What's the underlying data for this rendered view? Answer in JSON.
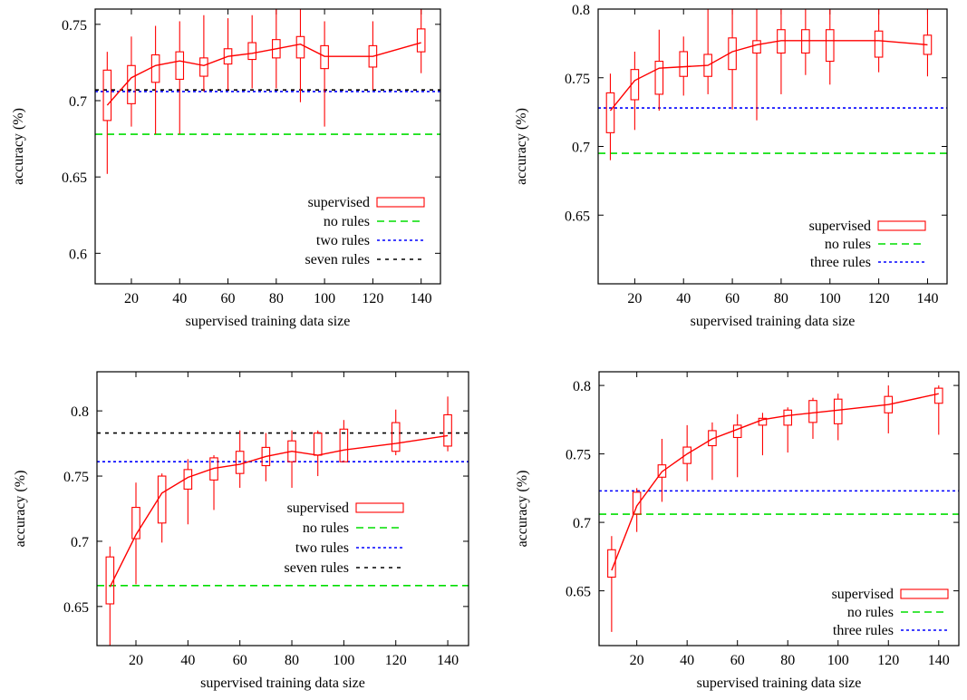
{
  "chart_data": [
    {
      "type": "box",
      "xlabel": "supervised training data size",
      "ylabel": "accuracy (%)",
      "xlim": [
        5,
        148
      ],
      "ylim": [
        0.58,
        0.76
      ],
      "xticks": [
        20,
        40,
        60,
        80,
        100,
        120,
        140
      ],
      "yticks": [
        0.6,
        0.65,
        0.7,
        0.75
      ],
      "ytick_labels": [
        "0.6",
        "0.65",
        "0.7",
        "0.75"
      ],
      "legend_position": "bottom-right",
      "box_series": {
        "name": "supervised",
        "color": "#ff0000",
        "x": [
          10,
          20,
          30,
          40,
          50,
          60,
          70,
          80,
          90,
          100,
          120,
          140
        ],
        "median": [
          0.697,
          0.715,
          0.723,
          0.726,
          0.723,
          0.729,
          0.731,
          0.734,
          0.737,
          0.729,
          0.729,
          0.738
        ],
        "q1": [
          0.687,
          0.698,
          0.712,
          0.714,
          0.716,
          0.724,
          0.727,
          0.728,
          0.728,
          0.721,
          0.722,
          0.732
        ],
        "q3": [
          0.72,
          0.723,
          0.73,
          0.732,
          0.728,
          0.734,
          0.738,
          0.74,
          0.742,
          0.736,
          0.736,
          0.747
        ],
        "min": [
          0.652,
          0.683,
          0.678,
          0.678,
          0.706,
          0.707,
          0.708,
          0.708,
          0.699,
          0.683,
          0.707,
          0.718
        ],
        "max": [
          0.732,
          0.742,
          0.749,
          0.752,
          0.756,
          0.754,
          0.756,
          0.76,
          0.76,
          0.752,
          0.752,
          0.76
        ],
        "line": [
          0.697,
          0.715,
          0.723,
          0.726,
          0.723,
          0.729,
          0.731,
          0.734,
          0.737,
          0.729,
          0.729,
          0.738
        ]
      },
      "hlines": [
        {
          "name": "no rules",
          "value": 0.678,
          "color": "#00dd00",
          "dash": "8,5"
        },
        {
          "name": "two rules",
          "value": 0.706,
          "color": "#0000ff",
          "dash": "3,3"
        },
        {
          "name": "seven rules",
          "value": 0.707,
          "color": "#000000",
          "dash": "4,5"
        }
      ]
    },
    {
      "type": "box",
      "xlabel": "supervised training data size",
      "ylabel": "accuracy (%)",
      "xlim": [
        5,
        148
      ],
      "ylim": [
        0.6,
        0.8
      ],
      "xticks": [
        20,
        40,
        60,
        80,
        100,
        120,
        140
      ],
      "yticks": [
        0.65,
        0.7,
        0.75,
        0.8
      ],
      "ytick_labels": [
        "0.65",
        "0.7",
        "0.75",
        "0.8"
      ],
      "legend_position": "bottom-right",
      "box_series": {
        "name": "supervised",
        "color": "#ff0000",
        "x": [
          10,
          20,
          30,
          40,
          50,
          60,
          70,
          80,
          90,
          100,
          120,
          140
        ],
        "median": [
          0.726,
          0.748,
          0.757,
          0.758,
          0.759,
          0.769,
          0.774,
          0.777,
          0.777,
          0.777,
          0.777,
          0.774
        ],
        "q1": [
          0.71,
          0.734,
          0.738,
          0.751,
          0.751,
          0.756,
          0.768,
          0.768,
          0.768,
          0.762,
          0.765,
          0.767
        ],
        "q3": [
          0.739,
          0.756,
          0.762,
          0.769,
          0.767,
          0.779,
          0.777,
          0.785,
          0.785,
          0.785,
          0.784,
          0.781
        ],
        "min": [
          0.69,
          0.712,
          0.726,
          0.737,
          0.738,
          0.727,
          0.719,
          0.738,
          0.752,
          0.745,
          0.754,
          0.751
        ],
        "max": [
          0.753,
          0.769,
          0.785,
          0.78,
          0.8,
          0.8,
          0.8,
          0.8,
          0.8,
          0.8,
          0.8,
          0.8
        ],
        "line": [
          0.726,
          0.748,
          0.757,
          0.758,
          0.759,
          0.769,
          0.774,
          0.777,
          0.777,
          0.777,
          0.777,
          0.774
        ]
      },
      "hlines": [
        {
          "name": "no rules",
          "value": 0.695,
          "color": "#00dd00",
          "dash": "8,5"
        },
        {
          "name": "three rules",
          "value": 0.728,
          "color": "#0000ff",
          "dash": "3,3"
        }
      ]
    },
    {
      "type": "box",
      "xlabel": "supervised training data size",
      "ylabel": "accuracy (%)",
      "xlim": [
        5,
        148
      ],
      "ylim": [
        0.62,
        0.83
      ],
      "xticks": [
        20,
        40,
        60,
        80,
        100,
        120,
        140
      ],
      "yticks": [
        0.65,
        0.7,
        0.75,
        0.8
      ],
      "ytick_labels": [
        "0.65",
        "0.7",
        "0.75",
        "0.8"
      ],
      "legend_position": "center-right",
      "box_series": {
        "name": "supervised",
        "color": "#ff0000",
        "x": [
          10,
          20,
          30,
          40,
          50,
          60,
          70,
          80,
          90,
          100,
          120,
          140
        ],
        "median": [
          0.665,
          0.705,
          0.737,
          0.749,
          0.756,
          0.759,
          0.765,
          0.769,
          0.766,
          0.77,
          0.775,
          0.781
        ],
        "q1": [
          0.652,
          0.702,
          0.714,
          0.74,
          0.747,
          0.752,
          0.758,
          0.761,
          0.766,
          0.761,
          0.769,
          0.773
        ],
        "q3": [
          0.688,
          0.726,
          0.75,
          0.755,
          0.764,
          0.769,
          0.772,
          0.777,
          0.783,
          0.786,
          0.791,
          0.797
        ],
        "min": [
          0.62,
          0.667,
          0.699,
          0.713,
          0.724,
          0.741,
          0.746,
          0.741,
          0.75,
          0.762,
          0.766,
          0.769
        ],
        "max": [
          0.696,
          0.745,
          0.752,
          0.763,
          0.766,
          0.785,
          0.783,
          0.785,
          0.785,
          0.793,
          0.801,
          0.811
        ],
        "line": [
          0.665,
          0.705,
          0.737,
          0.749,
          0.756,
          0.759,
          0.765,
          0.769,
          0.766,
          0.77,
          0.775,
          0.781
        ]
      },
      "hlines": [
        {
          "name": "no rules",
          "value": 0.666,
          "color": "#00dd00",
          "dash": "8,5"
        },
        {
          "name": "two rules",
          "value": 0.761,
          "color": "#0000ff",
          "dash": "3,3"
        },
        {
          "name": "seven rules",
          "value": 0.783,
          "color": "#000000",
          "dash": "4,5"
        }
      ]
    },
    {
      "type": "box",
      "xlabel": "supervised training data size",
      "ylabel": "accuracy (%)",
      "xlim": [
        5,
        148
      ],
      "ylim": [
        0.61,
        0.81
      ],
      "xticks": [
        20,
        40,
        60,
        80,
        100,
        120,
        140
      ],
      "yticks": [
        0.65,
        0.7,
        0.75,
        0.8
      ],
      "ytick_labels": [
        "0.65",
        "0.7",
        "0.75",
        "0.8"
      ],
      "legend_position": "bottom-right",
      "box_series": {
        "name": "supervised",
        "color": "#ff0000",
        "x": [
          10,
          20,
          30,
          40,
          50,
          60,
          70,
          80,
          90,
          100,
          120,
          140
        ],
        "median": [
          0.665,
          0.712,
          0.737,
          0.75,
          0.761,
          0.768,
          0.775,
          0.778,
          0.78,
          0.782,
          0.786,
          0.794
        ],
        "q1": [
          0.66,
          0.706,
          0.733,
          0.743,
          0.756,
          0.762,
          0.771,
          0.771,
          0.773,
          0.772,
          0.78,
          0.787
        ],
        "q3": [
          0.68,
          0.722,
          0.742,
          0.755,
          0.767,
          0.771,
          0.776,
          0.782,
          0.789,
          0.79,
          0.792,
          0.798
        ],
        "min": [
          0.62,
          0.693,
          0.715,
          0.73,
          0.731,
          0.733,
          0.749,
          0.751,
          0.761,
          0.76,
          0.765,
          0.764
        ],
        "max": [
          0.69,
          0.725,
          0.761,
          0.771,
          0.773,
          0.779,
          0.78,
          0.784,
          0.791,
          0.794,
          0.8,
          0.8
        ],
        "line": [
          0.665,
          0.712,
          0.737,
          0.75,
          0.761,
          0.768,
          0.775,
          0.778,
          0.78,
          0.782,
          0.786,
          0.794
        ]
      },
      "hlines": [
        {
          "name": "no rules",
          "value": 0.706,
          "color": "#00dd00",
          "dash": "8,5"
        },
        {
          "name": "three rules",
          "value": 0.723,
          "color": "#0000ff",
          "dash": "3,3"
        }
      ]
    }
  ]
}
